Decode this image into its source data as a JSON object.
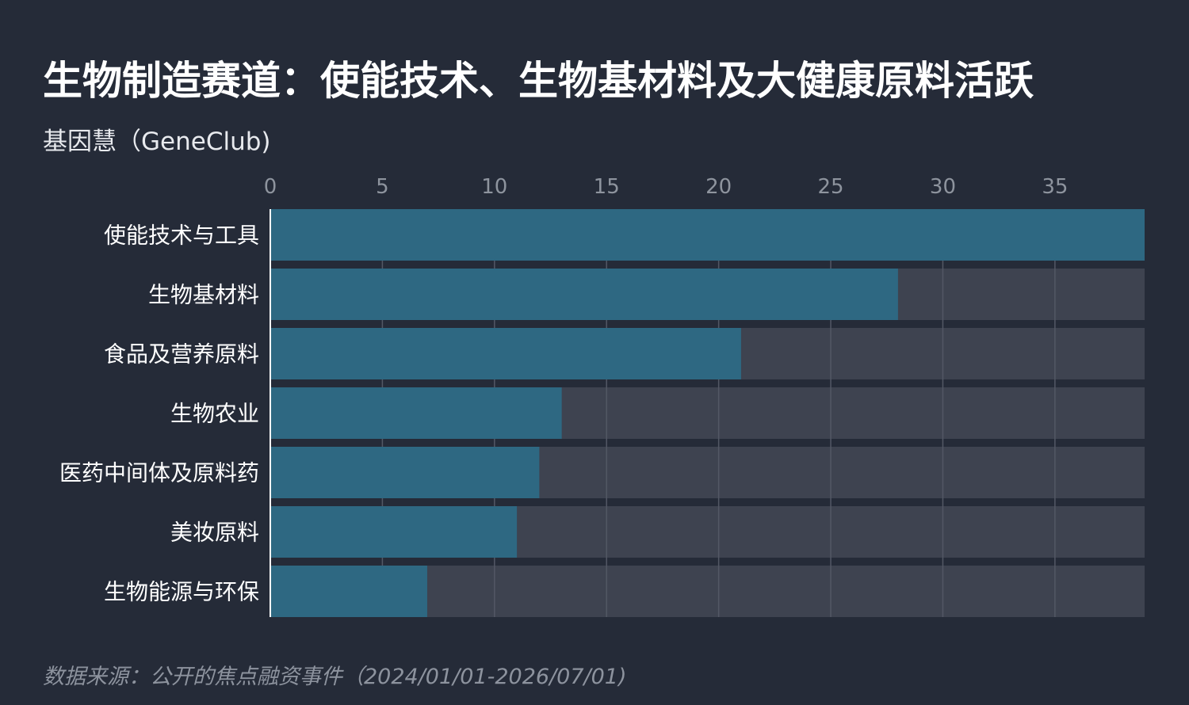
{
  "title": "生物制造赛道：使能技术、生物基材料及大健康原料活跃",
  "subtitle": "基因慧（GeneClub)",
  "source": "数据来源：公开的焦点融资事件（2024/01/01-2026/07/01)",
  "colors": {
    "background": "#252b38",
    "bar": "#2e6882",
    "track": "#3e4350",
    "gridline": "#535865",
    "axis": "#ffffff"
  },
  "chart_data": {
    "type": "bar",
    "orientation": "horizontal",
    "categories": [
      "使能技术与工具",
      "生物基材料",
      "食品及营养原料",
      "生物农业",
      "医药中间体及原料药",
      "美妆原料",
      "生物能源与环保"
    ],
    "values": [
      39,
      28,
      21,
      13,
      12,
      11,
      7
    ],
    "xticks": [
      0,
      5,
      10,
      15,
      20,
      25,
      30,
      35
    ],
    "xlim": [
      0,
      39
    ],
    "xaxis_position": "top",
    "grid": true,
    "xlabel": "",
    "ylabel": ""
  }
}
